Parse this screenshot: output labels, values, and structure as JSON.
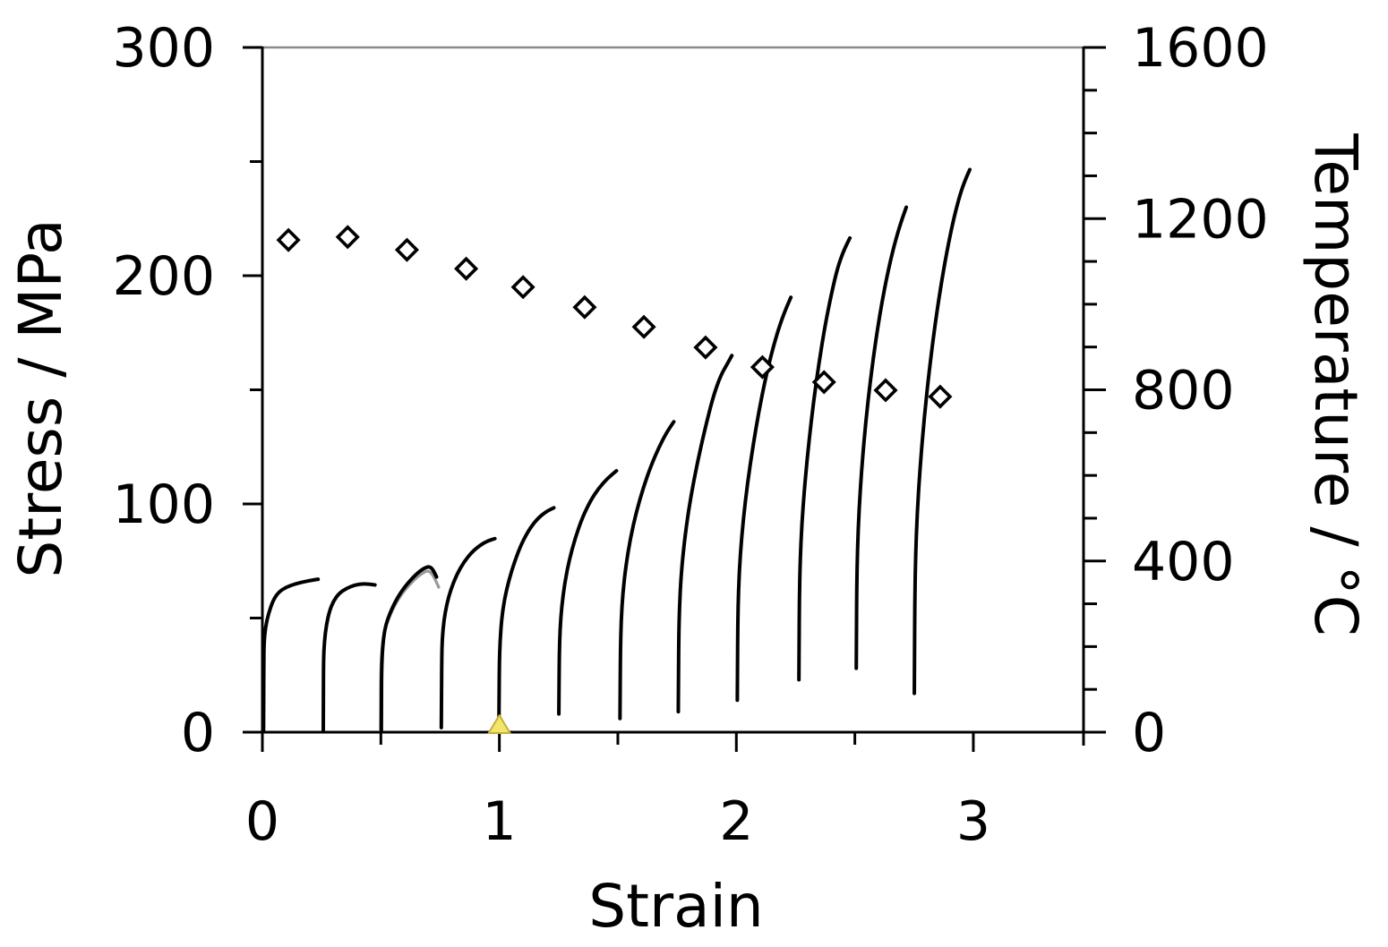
{
  "chart_data": {
    "type": "line",
    "title": "",
    "xlabel": "Strain",
    "ylabel_left": "Stress / MPa",
    "ylabel_right": "Temperature / °C",
    "legend": "none",
    "grid": false,
    "x_axis": {
      "min": 0,
      "max": 3.465,
      "major_ticks": [
        0,
        1,
        2,
        3
      ],
      "minor_ticks": [
        0.5,
        1.5,
        2.5
      ]
    },
    "y_left_axis": {
      "min": 0,
      "max": 300,
      "major_ticks": [
        0,
        100,
        200,
        300
      ],
      "minor_ticks": [
        50,
        150,
        250
      ]
    },
    "y_right_axis": {
      "min": 0,
      "max": 1600,
      "major_ticks": [
        0,
        400,
        800,
        1200,
        1600
      ],
      "minor_step": 100
    },
    "style": {
      "background": "#ffffff",
      "axis_color": "#000000",
      "top_border_color": "#8a8a8a",
      "curve_color": "#000000",
      "shadow_curve_color": "#999999",
      "diamond_fill": "#ffffff",
      "diamond_stroke": "#000000",
      "triangle_fill": "#f4e469",
      "triangle_edge": "#c2ae3d"
    },
    "series": [
      {
        "id": "pass-03-shadow",
        "type": "line",
        "axis": "left",
        "color": "#999999",
        "width": 3.2,
        "points": [
          [
            0.498,
            1
          ],
          [
            0.4985,
            13
          ],
          [
            0.499,
            24
          ],
          [
            0.502,
            33
          ],
          [
            0.508,
            40
          ],
          [
            0.518,
            45.5
          ],
          [
            0.534,
            50
          ],
          [
            0.549,
            53.5
          ],
          [
            0.564,
            56.5
          ],
          [
            0.579,
            59
          ],
          [
            0.596,
            61.5
          ],
          [
            0.616,
            64
          ],
          [
            0.641,
            66.8
          ],
          [
            0.666,
            69
          ],
          [
            0.688,
            70.4
          ],
          [
            0.703,
            70.6
          ],
          [
            0.717,
            69.3
          ],
          [
            0.732,
            66.3
          ],
          [
            0.744,
            63.5
          ]
        ]
      },
      {
        "id": "pass-01",
        "type": "line",
        "axis": "left",
        "color": "#000000",
        "width": 4,
        "points": [
          [
            0.005,
            1
          ],
          [
            0.0055,
            15
          ],
          [
            0.006,
            30
          ],
          [
            0.007,
            39
          ],
          [
            0.013,
            46
          ],
          [
            0.026,
            52
          ],
          [
            0.046,
            58
          ],
          [
            0.07,
            61.5
          ],
          [
            0.1,
            63.5
          ],
          [
            0.14,
            65
          ],
          [
            0.18,
            66
          ],
          [
            0.21,
            66.6
          ],
          [
            0.235,
            67
          ]
        ]
      },
      {
        "id": "pass-02",
        "type": "line",
        "axis": "left",
        "color": "#000000",
        "width": 4,
        "points": [
          [
            0.257,
            1
          ],
          [
            0.2575,
            16
          ],
          [
            0.258,
            32
          ],
          [
            0.262,
            40
          ],
          [
            0.27,
            47
          ],
          [
            0.283,
            53
          ],
          [
            0.3,
            57.5
          ],
          [
            0.325,
            61
          ],
          [
            0.355,
            63
          ],
          [
            0.39,
            64.5
          ],
          [
            0.425,
            65
          ],
          [
            0.455,
            64.8
          ],
          [
            0.475,
            64.5
          ]
        ]
      },
      {
        "id": "pass-03",
        "type": "line",
        "axis": "left",
        "color": "#000000",
        "width": 4,
        "points": [
          [
            0.502,
            1
          ],
          [
            0.5025,
            14
          ],
          [
            0.503,
            26
          ],
          [
            0.506,
            35
          ],
          [
            0.512,
            42
          ],
          [
            0.522,
            47.5
          ],
          [
            0.538,
            52
          ],
          [
            0.553,
            55.5
          ],
          [
            0.568,
            58.5
          ],
          [
            0.583,
            61
          ],
          [
            0.6,
            63.5
          ],
          [
            0.62,
            66
          ],
          [
            0.645,
            68.8
          ],
          [
            0.67,
            71
          ],
          [
            0.692,
            72.3
          ],
          [
            0.707,
            72.5
          ],
          [
            0.72,
            71.2
          ],
          [
            0.735,
            68
          ]
        ]
      },
      {
        "id": "pass-04",
        "type": "line",
        "axis": "left",
        "color": "#000000",
        "width": 4,
        "points": [
          [
            0.755,
            2
          ],
          [
            0.756,
            18
          ],
          [
            0.757,
            33
          ],
          [
            0.759,
            41
          ],
          [
            0.766,
            49
          ],
          [
            0.778,
            56
          ],
          [
            0.795,
            62.5
          ],
          [
            0.82,
            69
          ],
          [
            0.85,
            74.5
          ],
          [
            0.885,
            79
          ],
          [
            0.92,
            82
          ],
          [
            0.95,
            83.8
          ],
          [
            0.981,
            84.8
          ]
        ]
      },
      {
        "id": "pass-05",
        "type": "line",
        "axis": "left",
        "color": "#000000",
        "width": 4,
        "points": [
          [
            0.998,
            2
          ],
          [
            0.999,
            16
          ],
          [
            1.0,
            30
          ],
          [
            1.003,
            40
          ],
          [
            1.01,
            50
          ],
          [
            1.022,
            58.5
          ],
          [
            1.04,
            66.5
          ],
          [
            1.065,
            75
          ],
          [
            1.095,
            83
          ],
          [
            1.13,
            89.5
          ],
          [
            1.165,
            94
          ],
          [
            1.2,
            96.8
          ],
          [
            1.23,
            98.3
          ]
        ]
      },
      {
        "id": "pass-06",
        "type": "line",
        "axis": "left",
        "color": "#000000",
        "width": 4,
        "points": [
          [
            1.251,
            8
          ],
          [
            1.252,
            22
          ],
          [
            1.253,
            34
          ],
          [
            1.256,
            45
          ],
          [
            1.263,
            55
          ],
          [
            1.276,
            65.5
          ],
          [
            1.295,
            75.5
          ],
          [
            1.32,
            85
          ],
          [
            1.35,
            94
          ],
          [
            1.385,
            101.5
          ],
          [
            1.42,
            107
          ],
          [
            1.457,
            111.3
          ],
          [
            1.494,
            114.5
          ]
        ]
      },
      {
        "id": "pass-07",
        "type": "line",
        "axis": "left",
        "color": "#000000",
        "width": 4,
        "points": [
          [
            1.509,
            6
          ],
          [
            1.51,
            22
          ],
          [
            1.511,
            36
          ],
          [
            1.514,
            49
          ],
          [
            1.521,
            61
          ],
          [
            1.534,
            73
          ],
          [
            1.553,
            85
          ],
          [
            1.578,
            96.5
          ],
          [
            1.607,
            107
          ],
          [
            1.639,
            116.5
          ],
          [
            1.672,
            124.5
          ],
          [
            1.704,
            131
          ],
          [
            1.736,
            136
          ]
        ]
      },
      {
        "id": "pass-08",
        "type": "line",
        "axis": "left",
        "color": "#000000",
        "width": 4,
        "points": [
          [
            1.755,
            9
          ],
          [
            1.756,
            25
          ],
          [
            1.757,
            41
          ],
          [
            1.76,
            55
          ],
          [
            1.767,
            69
          ],
          [
            1.78,
            83
          ],
          [
            1.798,
            97
          ],
          [
            1.821,
            110.5
          ],
          [
            1.847,
            123.5
          ],
          [
            1.875,
            136
          ],
          [
            1.905,
            148
          ],
          [
            1.935,
            156.5
          ],
          [
            1.96,
            161
          ],
          [
            1.981,
            165
          ]
        ]
      },
      {
        "id": "pass-09",
        "type": "line",
        "axis": "left",
        "color": "#000000",
        "width": 4,
        "points": [
          [
            2.004,
            14
          ],
          [
            2.005,
            31
          ],
          [
            2.006,
            47
          ],
          [
            2.009,
            62
          ],
          [
            2.016,
            77
          ],
          [
            2.029,
            93
          ],
          [
            2.047,
            109
          ],
          [
            2.069,
            124.5
          ],
          [
            2.094,
            140
          ],
          [
            2.122,
            154.5
          ],
          [
            2.151,
            167
          ],
          [
            2.179,
            177
          ],
          [
            2.205,
            184.5
          ],
          [
            2.23,
            190.5
          ]
        ]
      },
      {
        "id": "pass-10",
        "type": "line",
        "axis": "left",
        "color": "#000000",
        "width": 4,
        "points": [
          [
            2.264,
            23
          ],
          [
            2.265,
            41
          ],
          [
            2.266,
            58
          ],
          [
            2.269,
            74
          ],
          [
            2.276,
            91
          ],
          [
            2.289,
            109
          ],
          [
            2.306,
            127
          ],
          [
            2.326,
            145
          ],
          [
            2.349,
            162
          ],
          [
            2.374,
            178
          ],
          [
            2.401,
            192
          ],
          [
            2.427,
            203.5
          ],
          [
            2.453,
            211
          ],
          [
            2.479,
            216.5
          ]
        ]
      },
      {
        "id": "pass-11",
        "type": "line",
        "axis": "left",
        "color": "#000000",
        "width": 4,
        "points": [
          [
            2.506,
            28
          ],
          [
            2.507,
            46
          ],
          [
            2.508,
            63
          ],
          [
            2.511,
            80
          ],
          [
            2.518,
            98
          ],
          [
            2.53,
            117
          ],
          [
            2.546,
            136
          ],
          [
            2.566,
            154.5
          ],
          [
            2.588,
            171.5
          ],
          [
            2.612,
            187
          ],
          [
            2.638,
            201
          ],
          [
            2.664,
            212.5
          ],
          [
            2.69,
            222
          ],
          [
            2.717,
            230
          ]
        ]
      },
      {
        "id": "pass-12",
        "type": "line",
        "axis": "left",
        "color": "#000000",
        "width": 4,
        "points": [
          [
            2.751,
            17
          ],
          [
            2.752,
            37
          ],
          [
            2.753,
            56
          ],
          [
            2.756,
            76
          ],
          [
            2.763,
            96
          ],
          [
            2.776,
            117
          ],
          [
            2.793,
            138
          ],
          [
            2.814,
            158.5
          ],
          [
            2.837,
            177.5
          ],
          [
            2.862,
            195
          ],
          [
            2.889,
            211
          ],
          [
            2.917,
            225
          ],
          [
            2.945,
            236
          ],
          [
            2.966,
            242
          ],
          [
            2.985,
            246.5
          ]
        ]
      },
      {
        "id": "temperature",
        "type": "scatter",
        "axis": "right",
        "marker": "diamond-open",
        "color": "#000000",
        "fill": "#ffffff",
        "size": 11,
        "stroke_width": 3.6,
        "points": [
          [
            0.11,
            1150
          ],
          [
            0.36,
            1157
          ],
          [
            0.61,
            1127
          ],
          [
            0.86,
            1083
          ],
          [
            1.1,
            1040
          ],
          [
            1.36,
            993
          ],
          [
            1.61,
            947
          ],
          [
            1.87,
            899
          ],
          [
            2.11,
            853
          ],
          [
            2.37,
            818
          ],
          [
            2.63,
            799
          ],
          [
            2.86,
            784
          ]
        ]
      },
      {
        "id": "event-marker",
        "type": "scatter",
        "axis": "left",
        "marker": "triangle-up",
        "color": "#c2ae3d",
        "fill": "#f4e469",
        "size": 12,
        "stroke_width": 2,
        "points": [
          [
            1.0,
            0
          ]
        ]
      }
    ]
  }
}
